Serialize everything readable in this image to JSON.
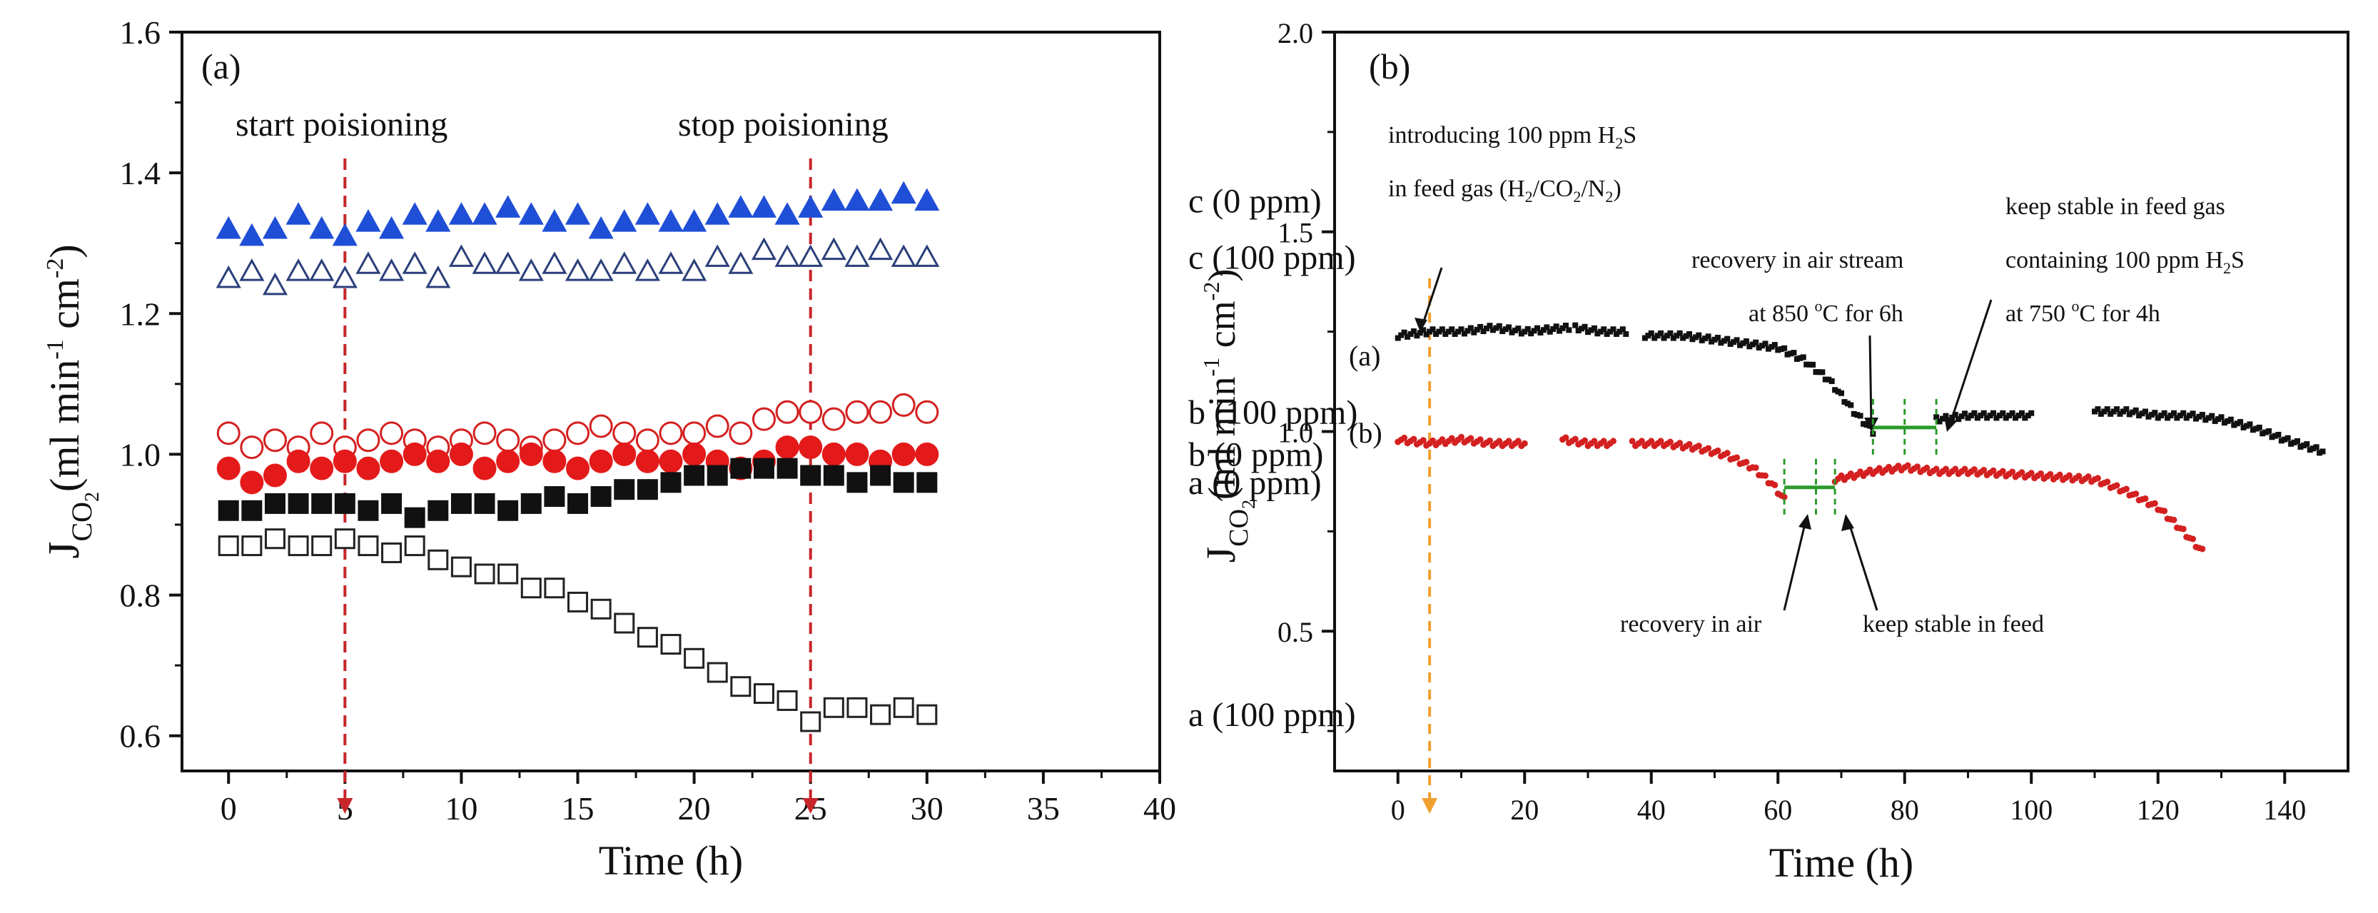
{
  "chart_data": [
    {
      "panel": "(a)",
      "type": "scatter",
      "xlabel": "Time (h)",
      "ylabel_main": "J",
      "ylabel_sub": "CO",
      "ylabel_sub2": "2",
      "ylabel_unit": "(ml min",
      "ylabel_exp1": "-1",
      "ylabel_mid": " cm",
      "ylabel_exp2": "-2",
      "ylabel_close": ")",
      "xlim": [
        -2,
        40
      ],
      "ylim": [
        0.55,
        1.6
      ],
      "xticks": [
        "0",
        "5",
        "10",
        "15",
        "20",
        "25",
        "30",
        "35",
        "40"
      ],
      "yticks": [
        "0.6",
        "0.8",
        "1.0",
        "1.2",
        "1.4",
        "1.6"
      ],
      "annotations": [
        "start poisioning",
        "stop poisioning"
      ],
      "markers_at_x": [
        5,
        25
      ],
      "series": [
        {
          "name": "c (0 ppm)",
          "marker": "triangle",
          "filled": true,
          "color": "#1f4fd6",
          "x": [
            0,
            1,
            2,
            3,
            4,
            5,
            6,
            7,
            8,
            9,
            10,
            11,
            12,
            13,
            14,
            15,
            16,
            17,
            18,
            19,
            20,
            21,
            22,
            23,
            24,
            25,
            26,
            27,
            28,
            29,
            30
          ],
          "values": [
            1.32,
            1.31,
            1.32,
            1.34,
            1.32,
            1.31,
            1.33,
            1.32,
            1.34,
            1.33,
            1.34,
            1.34,
            1.35,
            1.34,
            1.33,
            1.34,
            1.32,
            1.33,
            1.34,
            1.33,
            1.33,
            1.34,
            1.35,
            1.35,
            1.34,
            1.35,
            1.36,
            1.36,
            1.36,
            1.37,
            1.36
          ]
        },
        {
          "name": "c (100 ppm)",
          "marker": "triangle",
          "filled": false,
          "color": "#2a3f7a",
          "x": [
            0,
            1,
            2,
            3,
            4,
            5,
            6,
            7,
            8,
            9,
            10,
            11,
            12,
            13,
            14,
            15,
            16,
            17,
            18,
            19,
            20,
            21,
            22,
            23,
            24,
            25,
            26,
            27,
            28,
            29,
            30
          ],
          "values": [
            1.25,
            1.26,
            1.24,
            1.26,
            1.26,
            1.25,
            1.27,
            1.26,
            1.27,
            1.25,
            1.28,
            1.27,
            1.27,
            1.26,
            1.27,
            1.26,
            1.26,
            1.27,
            1.26,
            1.27,
            1.26,
            1.28,
            1.27,
            1.29,
            1.28,
            1.28,
            1.29,
            1.28,
            1.29,
            1.28,
            1.28
          ]
        },
        {
          "name": "b (100 ppm)",
          "marker": "circle",
          "filled": false,
          "color": "#d42020",
          "x": [
            0,
            1,
            2,
            3,
            4,
            5,
            6,
            7,
            8,
            9,
            10,
            11,
            12,
            13,
            14,
            15,
            16,
            17,
            18,
            19,
            20,
            21,
            22,
            23,
            24,
            25,
            26,
            27,
            28,
            29,
            30
          ],
          "values": [
            1.03,
            1.01,
            1.02,
            1.01,
            1.03,
            1.01,
            1.02,
            1.03,
            1.02,
            1.01,
            1.02,
            1.03,
            1.02,
            1.01,
            1.02,
            1.03,
            1.04,
            1.03,
            1.02,
            1.03,
            1.03,
            1.04,
            1.03,
            1.05,
            1.06,
            1.06,
            1.05,
            1.06,
            1.06,
            1.07,
            1.06
          ]
        },
        {
          "name": "b (0 ppm)",
          "marker": "circle",
          "filled": true,
          "color": "#e41a1a",
          "x": [
            0,
            1,
            2,
            3,
            4,
            5,
            6,
            7,
            8,
            9,
            10,
            11,
            12,
            13,
            14,
            15,
            16,
            17,
            18,
            19,
            20,
            21,
            22,
            23,
            24,
            25,
            26,
            27,
            28,
            29,
            30
          ],
          "values": [
            0.98,
            0.96,
            0.97,
            0.99,
            0.98,
            0.99,
            0.98,
            0.99,
            1.0,
            0.99,
            1.0,
            0.98,
            0.99,
            1.0,
            0.99,
            0.98,
            0.99,
            1.0,
            0.99,
            0.99,
            1.0,
            0.99,
            0.98,
            0.99,
            1.01,
            1.01,
            1.0,
            1.0,
            0.99,
            1.0,
            1.0
          ]
        },
        {
          "name": "a (0 ppm)",
          "marker": "square",
          "filled": true,
          "color": "#111111",
          "x": [
            0,
            1,
            2,
            3,
            4,
            5,
            6,
            7,
            8,
            9,
            10,
            11,
            12,
            13,
            14,
            15,
            16,
            17,
            18,
            19,
            20,
            21,
            22,
            23,
            24,
            25,
            26,
            27,
            28,
            29,
            30
          ],
          "values": [
            0.92,
            0.92,
            0.93,
            0.93,
            0.93,
            0.93,
            0.92,
            0.93,
            0.91,
            0.92,
            0.93,
            0.93,
            0.92,
            0.93,
            0.94,
            0.93,
            0.94,
            0.95,
            0.95,
            0.96,
            0.97,
            0.97,
            0.98,
            0.98,
            0.98,
            0.97,
            0.97,
            0.96,
            0.97,
            0.96,
            0.96
          ]
        },
        {
          "name": "a (100 ppm)",
          "marker": "square",
          "filled": false,
          "color": "#222222",
          "x": [
            0,
            1,
            2,
            3,
            4,
            5,
            6,
            7,
            8,
            9,
            10,
            11,
            12,
            13,
            14,
            15,
            16,
            17,
            18,
            19,
            20,
            21,
            22,
            23,
            24,
            25,
            26,
            27,
            28,
            29,
            30
          ],
          "values": [
            0.87,
            0.87,
            0.88,
            0.87,
            0.87,
            0.88,
            0.87,
            0.86,
            0.87,
            0.85,
            0.84,
            0.83,
            0.83,
            0.81,
            0.81,
            0.79,
            0.78,
            0.76,
            0.74,
            0.73,
            0.71,
            0.69,
            0.67,
            0.66,
            0.65,
            0.62,
            0.64,
            0.64,
            0.63,
            0.64,
            0.63
          ]
        }
      ]
    },
    {
      "panel": "(b)",
      "type": "scatter",
      "xlabel": "Time (h)",
      "ylabel_main": "J",
      "ylabel_sub": "CO",
      "ylabel_sub2": "2",
      "ylabel_unit": "(ml min",
      "ylabel_exp1": "-1",
      "ylabel_mid": " cm",
      "ylabel_exp2": "-2",
      "ylabel_close": ")",
      "xlim": [
        -10,
        150
      ],
      "ylim": [
        0.15,
        2.0
      ],
      "xticks": [
        "0",
        "20",
        "40",
        "60",
        "80",
        "100",
        "120",
        "140"
      ],
      "xtick_values": [
        0,
        20,
        40,
        60,
        80,
        100,
        120,
        140
      ],
      "yticks": [
        "0.5",
        "1.0",
        "1.5",
        "2.0"
      ],
      "ytick_values": [
        0.5,
        1.0,
        1.5,
        2.0
      ],
      "series_labels": [
        "(a)",
        "(b)"
      ],
      "annotation_intro_1": "introducing 100 ppm H",
      "annotation_intro_1_sub": "2",
      "annotation_intro_1_end": "S",
      "annotation_intro_2": "in feed gas (H",
      "annotation_intro_2_rest": "/CO",
      "annotation_intro_2_rest2": "/N",
      "annotation_intro_2_close": ")",
      "annotation_recovery_air_stream_1": "recovery in air stream",
      "annotation_recovery_air_stream_2_pre": "at 850 ",
      "annotation_recovery_air_stream_2_deg": "o",
      "annotation_recovery_air_stream_2_post": "C for 6h",
      "annotation_keep_stable_1": "keep stable in feed gas",
      "annotation_keep_stable_2_pre": "containing 100 ppm H",
      "annotation_keep_stable_2_sub": "2",
      "annotation_keep_stable_2_end": "S",
      "annotation_keep_stable_3_pre": "at 750 ",
      "annotation_keep_stable_3_deg": "o",
      "annotation_keep_stable_3_post": "C for 4h",
      "annotation_recovery_air": "recovery in air",
      "annotation_keep_stable_feed": "keep stable in feed",
      "event_x": 5,
      "series": [
        {
          "name": "(a)",
          "color": "#111111",
          "segments": [
            {
              "x_start": 0,
              "x_end": 27,
              "points": [
                [
                  0,
                  1.24
                ],
                [
                  5,
                  1.25
                ],
                [
                  10,
                  1.25
                ],
                [
                  15,
                  1.26
                ],
                [
                  20,
                  1.25
                ],
                [
                  27,
                  1.26
                ]
              ]
            },
            {
              "x_start": 28,
              "x_end": 36,
              "points": [
                [
                  28,
                  1.26
                ],
                [
                  32,
                  1.25
                ],
                [
                  36,
                  1.25
                ]
              ]
            },
            {
              "x_start": 39,
              "x_end": 75,
              "points": [
                [
                  39,
                  1.24
                ],
                [
                  45,
                  1.24
                ],
                [
                  50,
                  1.23
                ],
                [
                  55,
                  1.22
                ],
                [
                  60,
                  1.21
                ],
                [
                  64,
                  1.18
                ],
                [
                  68,
                  1.13
                ],
                [
                  72,
                  1.05
                ],
                [
                  75,
                  1.0
                ]
              ]
            },
            {
              "x_start": 85,
              "x_end": 100,
              "points": [
                [
                  85,
                  1.03
                ],
                [
                  90,
                  1.04
                ],
                [
                  95,
                  1.04
                ],
                [
                  100,
                  1.04
                ]
              ]
            },
            {
              "x_start": 110,
              "x_end": 146,
              "points": [
                [
                  110,
                  1.05
                ],
                [
                  115,
                  1.05
                ],
                [
                  120,
                  1.04
                ],
                [
                  125,
                  1.04
                ],
                [
                  130,
                  1.03
                ],
                [
                  135,
                  1.01
                ],
                [
                  140,
                  0.98
                ],
                [
                  146,
                  0.95
                ]
              ]
            }
          ]
        },
        {
          "name": "(b)",
          "color": "#d42020",
          "segments": [
            {
              "x_start": 0,
              "x_end": 20,
              "points": [
                [
                  0,
                  0.98
                ],
                [
                  5,
                  0.97
                ],
                [
                  10,
                  0.98
                ],
                [
                  15,
                  0.97
                ],
                [
                  20,
                  0.97
                ]
              ]
            },
            {
              "x_start": 26,
              "x_end": 34,
              "points": [
                [
                  26,
                  0.98
                ],
                [
                  30,
                  0.97
                ],
                [
                  34,
                  0.97
                ]
              ]
            },
            {
              "x_start": 37,
              "x_end": 61,
              "points": [
                [
                  37,
                  0.97
                ],
                [
                  42,
                  0.97
                ],
                [
                  47,
                  0.96
                ],
                [
                  52,
                  0.94
                ],
                [
                  56,
                  0.91
                ],
                [
                  59,
                  0.87
                ],
                [
                  61,
                  0.83
                ]
              ]
            },
            {
              "x_start": 69,
              "x_end": 127,
              "points": [
                [
                  69,
                  0.88
                ],
                [
                  75,
                  0.9
                ],
                [
                  80,
                  0.91
                ],
                [
                  85,
                  0.9
                ],
                [
                  90,
                  0.9
                ],
                [
                  100,
                  0.89
                ],
                [
                  110,
                  0.88
                ],
                [
                  115,
                  0.85
                ],
                [
                  120,
                  0.81
                ],
                [
                  124,
                  0.75
                ],
                [
                  127,
                  0.7
                ]
              ]
            }
          ]
        },
        {
          "name": "recovery-segments",
          "color": "#2a9a2a",
          "segments_green": [
            {
              "x1": 61,
              "x2": 69,
              "y": 0.86,
              "dashes": [
                61,
                66,
                69
              ]
            },
            {
              "x1": 75,
              "x2": 85,
              "y": 1.01,
              "dashes": [
                75,
                80,
                85
              ]
            }
          ]
        }
      ]
    }
  ]
}
